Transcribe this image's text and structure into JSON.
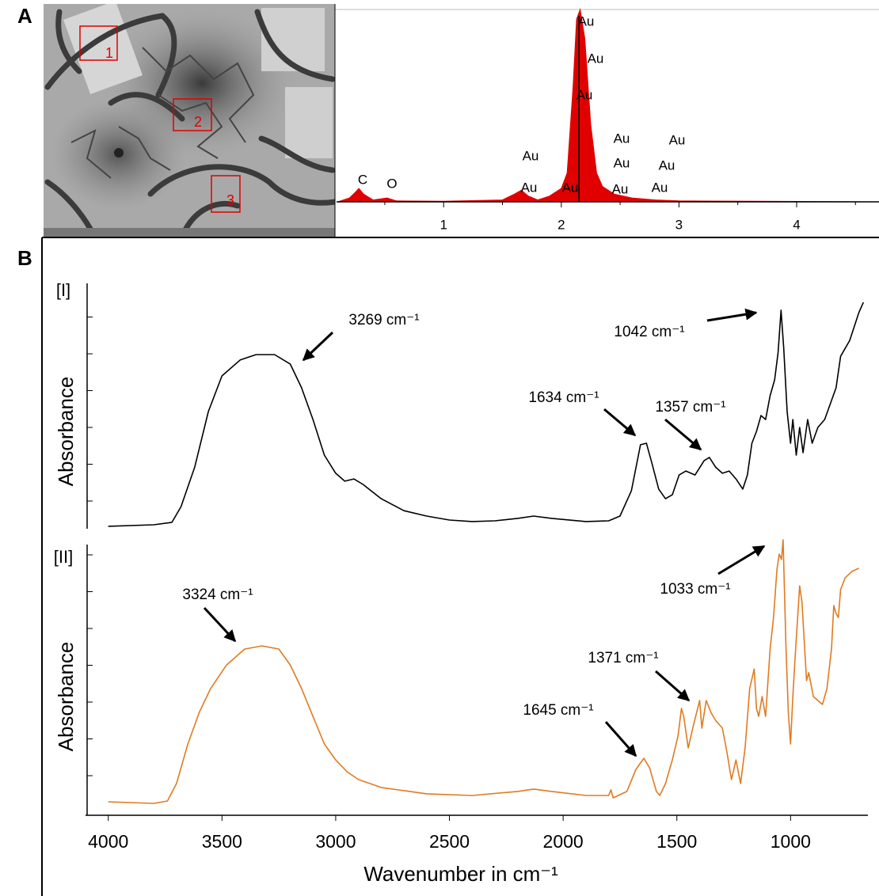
{
  "panels": [
    "A",
    "B"
  ],
  "sem_image": {
    "regions": [
      "1",
      "2",
      "3"
    ]
  },
  "chart_data": [
    {
      "type": "area",
      "color": "#e00000",
      "x": [
        0.1,
        0.2,
        0.25,
        0.28,
        0.32,
        0.4,
        0.52,
        0.6,
        1.0,
        1.5,
        1.6,
        1.66,
        1.72,
        1.8,
        1.9,
        2.0,
        2.05,
        2.1,
        2.13,
        2.16,
        2.2,
        2.25,
        2.3,
        2.35,
        2.45,
        2.6,
        2.8,
        3.0,
        4.7
      ],
      "values": [
        0,
        2,
        5,
        7,
        4,
        1,
        2,
        0.5,
        0.3,
        1,
        4,
        6,
        3,
        1,
        3,
        7,
        15,
        60,
        95,
        100,
        85,
        40,
        15,
        8,
        4,
        2,
        1,
        0.5,
        0
      ],
      "markers": [
        2.15
      ],
      "xlim": [
        0.09,
        4.7
      ],
      "ylim": [
        0,
        100
      ],
      "xticks": [
        1,
        2,
        3,
        4
      ],
      "peak_labels": [
        "C",
        "O",
        "Au",
        "Au",
        "Au",
        "Au",
        "Au",
        "Au",
        "Au",
        "Au",
        "Au",
        "Au",
        "Au",
        "Au"
      ]
    },
    {
      "type": "line",
      "title": "[I]",
      "ylabel": "Absorbance",
      "color": "#000000",
      "xlim": [
        4100,
        660
      ],
      "ylim": [
        0,
        100
      ],
      "x": [
        4000,
        3800,
        3720,
        3680,
        3620,
        3560,
        3500,
        3420,
        3350,
        3269,
        3200,
        3150,
        3100,
        3050,
        3000,
        2960,
        2920,
        2880,
        2800,
        2700,
        2600,
        2500,
        2400,
        2300,
        2200,
        2130,
        2050,
        1900,
        1800,
        1750,
        1700,
        1660,
        1634,
        1610,
        1580,
        1550,
        1520,
        1490,
        1460,
        1420,
        1380,
        1357,
        1330,
        1300,
        1270,
        1240,
        1210,
        1190,
        1170,
        1150,
        1130,
        1110,
        1090,
        1070,
        1055,
        1042,
        1030,
        1015,
        1000,
        990,
        975,
        960,
        945,
        925,
        905,
        880,
        850,
        800,
        780,
        740,
        700,
        680
      ],
      "values": [
        1.0,
        1.6,
        2.6,
        8.9,
        24.9,
        47.3,
        61.7,
        68.1,
        70.3,
        70.3,
        66.5,
        56.9,
        44.1,
        29.7,
        22.4,
        19.2,
        20.1,
        17.9,
        12.1,
        7.3,
        5.1,
        3.5,
        2.9,
        3.2,
        4.2,
        5.1,
        4.2,
        2.9,
        3.2,
        5.1,
        15.3,
        33.9,
        34.5,
        26.5,
        16.0,
        12.1,
        13.7,
        21.7,
        23.3,
        21.7,
        27.5,
        28.8,
        24.9,
        22.4,
        23.3,
        20.1,
        16.0,
        21.7,
        34.5,
        39.3,
        45.7,
        44.1,
        53.7,
        60.1,
        71.2,
        88.2,
        72.8,
        47.3,
        34.5,
        44.1,
        29.7,
        40.9,
        30.7,
        44.1,
        34.5,
        40.9,
        44.1,
        56.9,
        69.6,
        76.0,
        87.2,
        91.4
      ],
      "annotations": [
        "3269 cm⁻¹",
        "1634 cm⁻¹",
        "1357 cm⁻¹",
        "1042 cm⁻¹"
      ]
    },
    {
      "type": "line",
      "title": "[II]",
      "ylabel": "Absorbance",
      "xlabel": "Wavenumber in cm⁻¹",
      "color": "#e07b20",
      "xlim": [
        4100,
        660
      ],
      "ylim": [
        0,
        100
      ],
      "xticks": [
        4000,
        3500,
        3000,
        2500,
        2000,
        1500,
        1000
      ],
      "x": [
        4000,
        3800,
        3740,
        3700,
        3650,
        3600,
        3550,
        3480,
        3400,
        3324,
        3250,
        3200,
        3150,
        3100,
        3050,
        3000,
        2950,
        2900,
        2800,
        2600,
        2400,
        2200,
        2130,
        2050,
        1900,
        1800,
        1790,
        1780,
        1720,
        1680,
        1645,
        1620,
        1590,
        1575,
        1550,
        1520,
        1495,
        1480,
        1470,
        1450,
        1430,
        1400,
        1390,
        1371,
        1350,
        1330,
        1300,
        1280,
        1260,
        1240,
        1220,
        1200,
        1180,
        1160,
        1150,
        1140,
        1125,
        1110,
        1090,
        1075,
        1060,
        1050,
        1040,
        1033,
        1020,
        1010,
        1000,
        990,
        980,
        960,
        950,
        930,
        920,
        900,
        880,
        860,
        840,
        820,
        810,
        800,
        790,
        780,
        760,
        730,
        700
      ],
      "values": [
        0.6,
        0,
        0.9,
        7.5,
        22.4,
        34.3,
        43.3,
        52.2,
        58.2,
        59.4,
        58.2,
        52.2,
        43.3,
        32.8,
        22.4,
        16.4,
        11.9,
        9.0,
        6.0,
        3.6,
        3.0,
        4.5,
        5.4,
        4.5,
        3.0,
        3.0,
        5.1,
        2.1,
        4.5,
        12.8,
        17.0,
        13.4,
        4.5,
        3.0,
        7.5,
        16.4,
        25.4,
        35.8,
        32.8,
        20.9,
        28.4,
        38.8,
        28.4,
        38.8,
        34.3,
        31.3,
        28.4,
        19.4,
        9.0,
        16.4,
        7.5,
        20.9,
        43.3,
        50.7,
        35.8,
        32.8,
        40.3,
        32.8,
        58.2,
        70.1,
        88.1,
        94.0,
        92.0,
        99.4,
        58.2,
        34.3,
        22.4,
        40.3,
        55.2,
        82.1,
        76.1,
        46.3,
        49.3,
        40.3,
        38.8,
        37.3,
        43.3,
        58.2,
        74.6,
        71.6,
        70.1,
        80.6,
        85.1,
        87.5,
        88.7
      ],
      "annotations": [
        "3324 cm⁻¹",
        "1645 cm⁻¹",
        "1371 cm⁻¹",
        "1033 cm⁻¹"
      ]
    }
  ]
}
